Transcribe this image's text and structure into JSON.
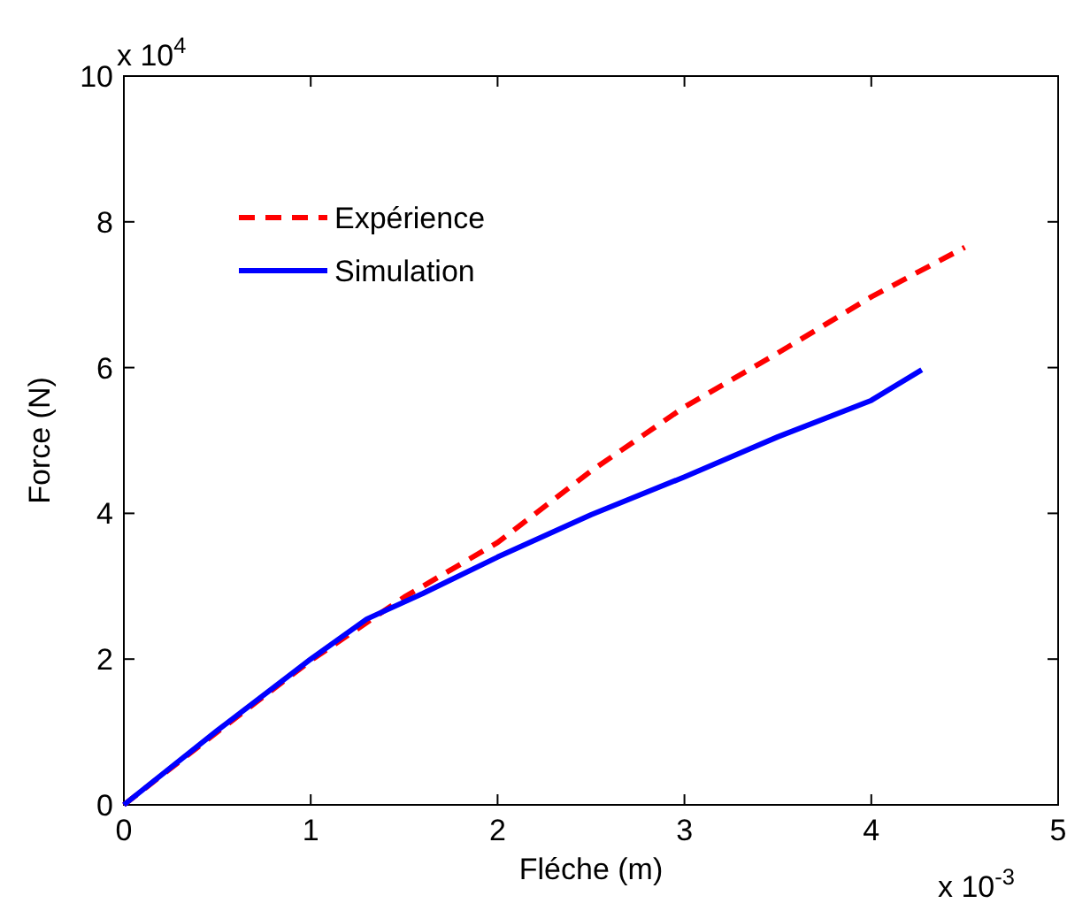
{
  "chart_data": {
    "type": "line",
    "xlabel": "Fléche (m)",
    "ylabel": "Force (N)",
    "annotations": [
      "x 10$^{4}$",
      "x 10$^{-3}$"
    ],
    "xlim": [
      0,
      5
    ],
    "xticks": [
      0,
      1,
      2,
      3,
      4,
      5
    ],
    "ylim": [
      0,
      10
    ],
    "yticks": [
      0,
      2,
      4,
      6,
      8,
      10
    ],
    "legend": "top left",
    "grid": false,
    "series": [
      {
        "name": "Expérience",
        "color": "#ff0000",
        "line_style": "dashed",
        "x": [
          0,
          0.5,
          1,
          1.5,
          2,
          2.5,
          3,
          3.5,
          4,
          4.5
        ],
        "values": [
          0,
          1,
          1.98,
          2.85,
          3.6,
          4.58,
          5.46,
          6.2,
          6.97,
          7.65
        ]
      },
      {
        "name": "Simulation",
        "color": "#0000ff",
        "line_style": "solid",
        "x": [
          0,
          0.5,
          1,
          1.3,
          1.6,
          2,
          2.5,
          3,
          3.5,
          4,
          4.27
        ],
        "values": [
          0,
          1.02,
          2,
          2.55,
          2.9,
          3.4,
          3.98,
          4.5,
          5.05,
          5.55,
          5.97
        ]
      }
    ]
  }
}
